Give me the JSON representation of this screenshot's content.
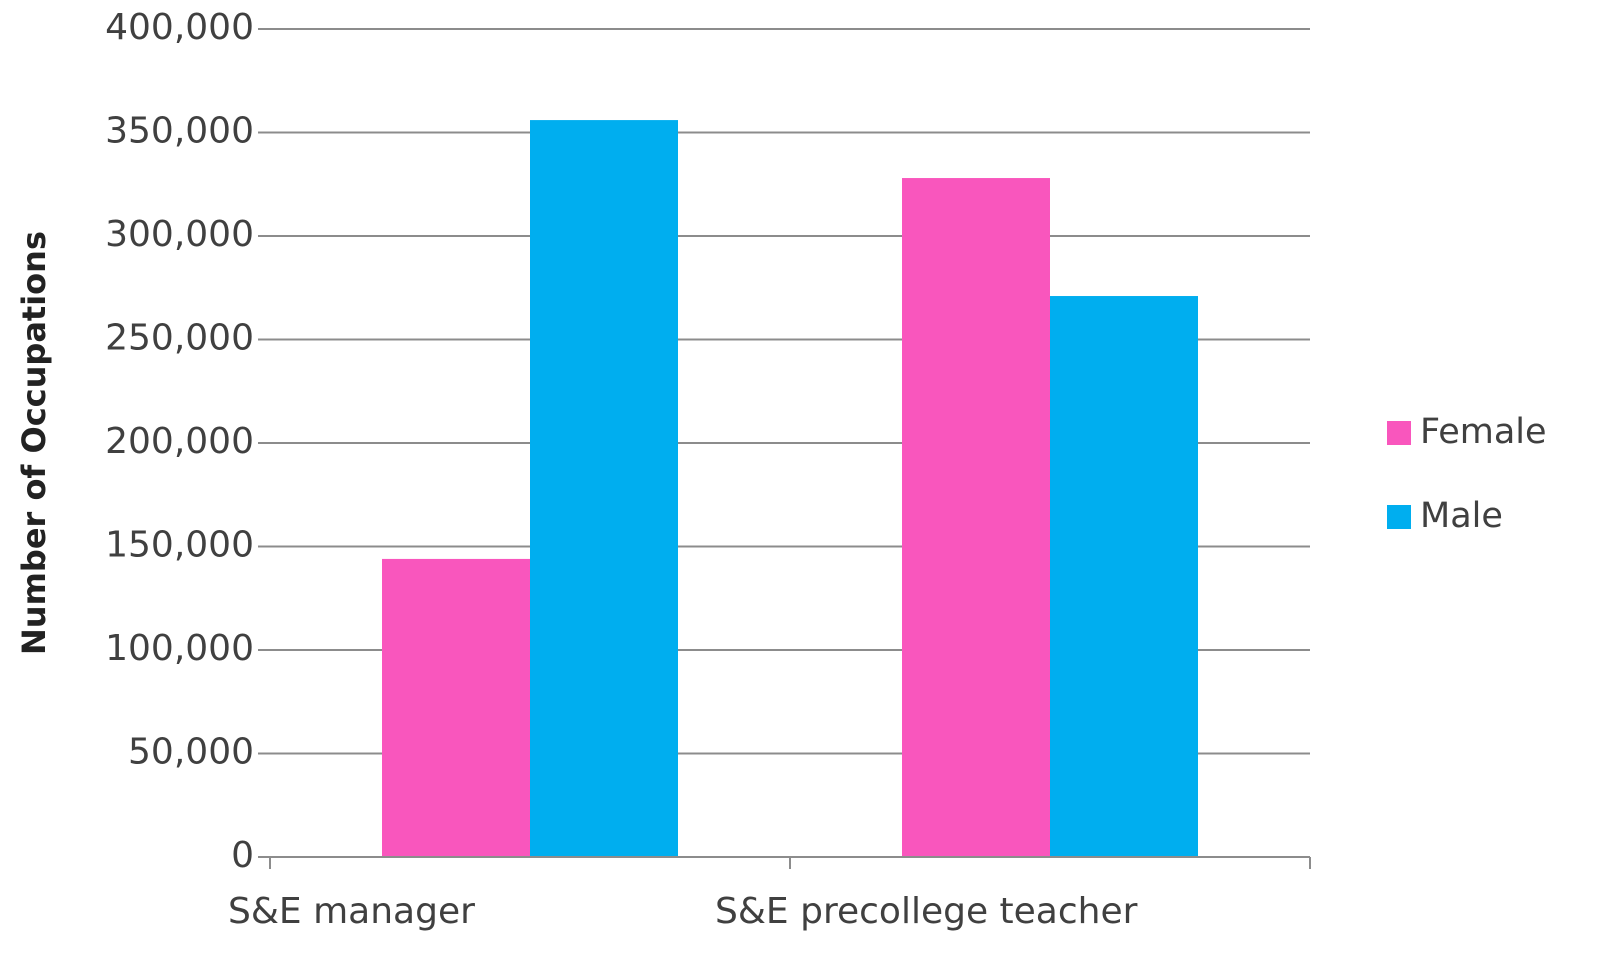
{
  "chart_data": {
    "type": "bar",
    "y_label": "Number of Occupations",
    "categories": [
      "S&E manager",
      "S&E precollege teacher"
    ],
    "series": [
      {
        "name": "Female",
        "color": "#f956bd",
        "values": [
          144000,
          328000
        ]
      },
      {
        "name": "Male",
        "color": "#00aeef",
        "values": [
          356000,
          271000
        ]
      }
    ],
    "ylim": [
      0,
      400000
    ],
    "yticks": [
      0,
      {
        "value": 50000,
        "label": "50,000"
      },
      {
        "value": 100000,
        "label": "100,000"
      },
      {
        "value": 150000,
        "label": "150,000"
      },
      {
        "value": 200000,
        "label": "200,000"
      },
      {
        "value": 250000,
        "label": "250,000"
      },
      {
        "value": 300000,
        "label": "300,000"
      },
      {
        "value": 350000,
        "label": "350,000"
      },
      {
        "value": 400000,
        "label": "400,000"
      }
    ],
    "grid": true,
    "legend": "right"
  }
}
